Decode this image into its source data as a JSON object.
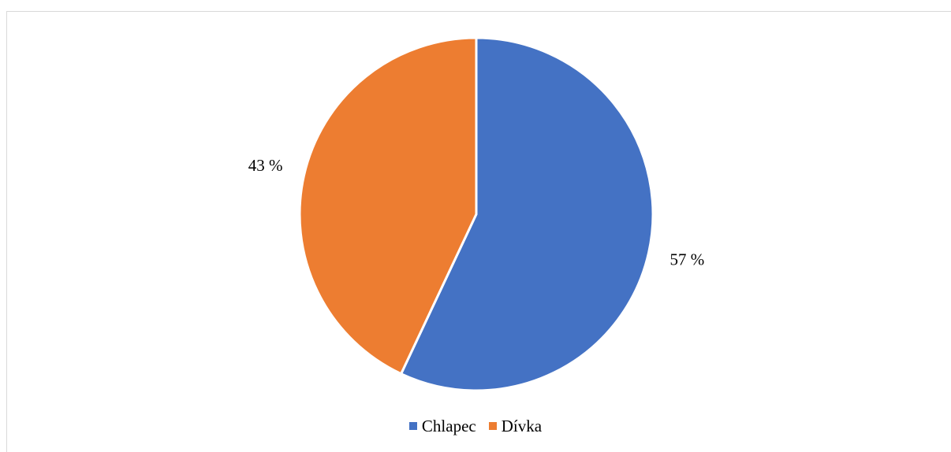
{
  "chart_data": {
    "type": "pie",
    "title": "",
    "slices": [
      {
        "label": "Chlapec",
        "value": 57,
        "display": "57 %",
        "color": "#4472C4"
      },
      {
        "label": "Dívka",
        "value": 43,
        "display": "43 %",
        "color": "#ED7D31"
      }
    ],
    "legend_position": "bottom",
    "start_angle": "top",
    "direction": "clockwise"
  }
}
